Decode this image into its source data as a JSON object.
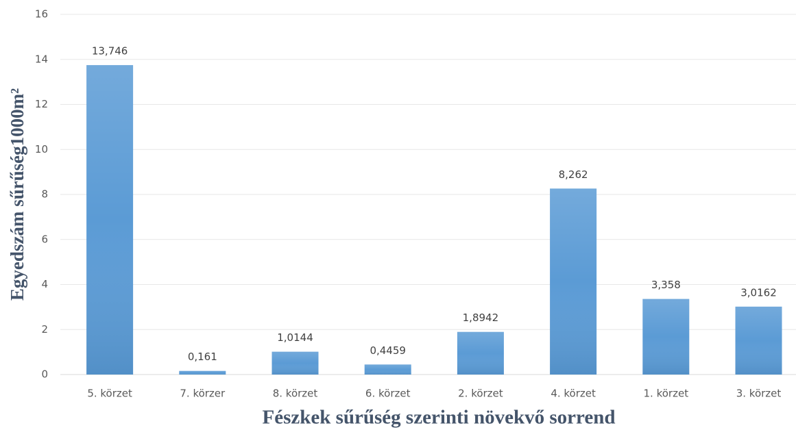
{
  "chart_data": {
    "type": "bar",
    "categories": [
      "5. körzet",
      "7. körzer",
      "8. körzet",
      "6. körzet",
      "2. körzet",
      "4. körzet",
      "1. körzet",
      "3. körzet"
    ],
    "values": [
      13.746,
      0.161,
      1.0144,
      0.4459,
      1.8942,
      8.262,
      3.358,
      3.0162
    ],
    "value_labels": [
      "13,746",
      "0,161",
      "1,0144",
      "0,4459",
      "1,8942",
      "8,262",
      "3,358",
      "3,0162"
    ],
    "color": "#5b9bd5",
    "ylim": [
      0,
      16
    ],
    "yticks": [
      0,
      2,
      4,
      6,
      8,
      10,
      12,
      14,
      16
    ],
    "grid": true,
    "y_label": "Egyedszám sűrűség1000m²",
    "x_label": "Fészkek sűrűség szerinti növekvő sorrend"
  }
}
